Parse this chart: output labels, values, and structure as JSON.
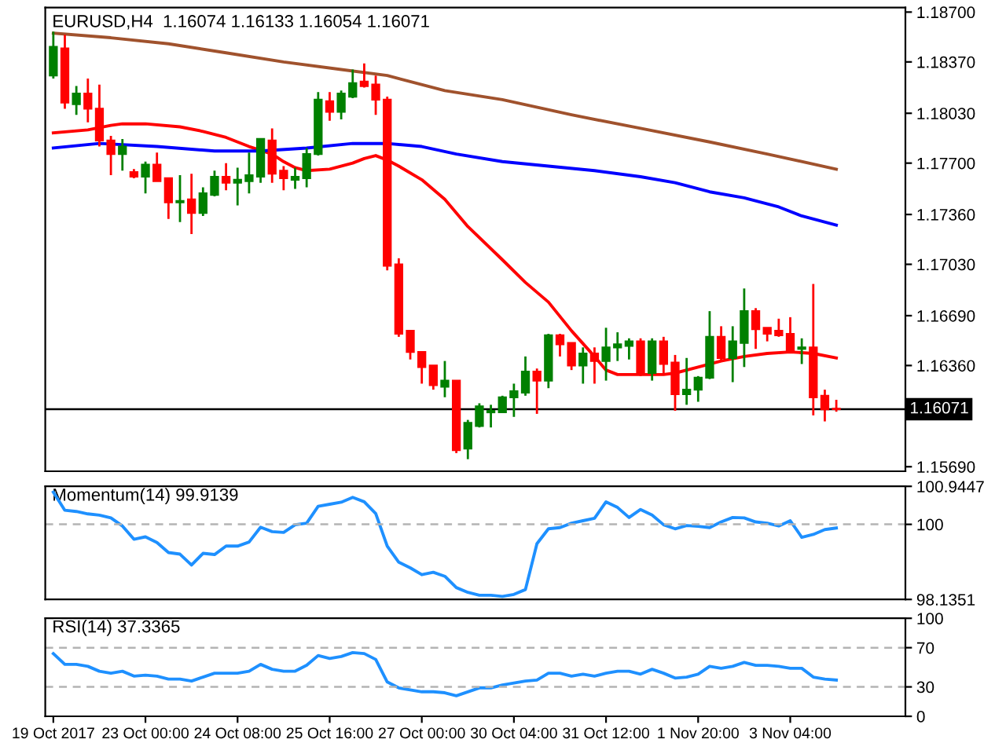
{
  "chart_data": [
    {
      "type": "candlestick",
      "title": "EURUSD,H4  1.16074 1.16133 1.16054 1.16071",
      "categories": [
        null,
        null,
        null,
        null,
        null,
        null,
        null,
        null,
        null,
        null,
        null,
        null,
        null,
        null,
        null,
        null,
        null,
        null,
        null,
        null,
        null,
        null,
        null,
        null,
        null,
        null,
        null,
        null,
        null,
        null,
        null,
        null,
        null,
        null,
        null,
        null,
        null,
        null,
        null,
        null,
        null,
        null,
        null,
        null,
        null,
        null,
        null,
        null,
        null,
        null,
        null,
        null,
        null,
        null,
        null,
        null,
        null,
        null,
        null,
        null,
        null,
        null,
        null,
        null,
        null,
        null,
        null,
        null,
        null
      ],
      "ohlc": [
        [
          1.1828,
          1.1857,
          1.1826,
          1.1847
        ],
        [
          1.1846,
          1.1855,
          1.1806,
          1.181
        ],
        [
          1.1809,
          1.1821,
          1.1802,
          1.1816
        ],
        [
          1.1816,
          1.1826,
          1.1797,
          1.1806
        ],
        [
          1.1806,
          1.1822,
          1.1781,
          1.1785
        ],
        [
          1.1785,
          1.1788,
          1.1762,
          1.1776
        ],
        [
          1.1776,
          1.1786,
          1.1765,
          1.1781
        ],
        [
          1.1764,
          1.1766,
          1.176,
          1.1761
        ],
        [
          1.1761,
          1.1771,
          1.175,
          1.1769
        ],
        [
          1.1769,
          1.1777,
          1.1758,
          1.1758
        ],
        [
          1.176,
          1.176,
          1.1733,
          1.1744
        ],
        [
          1.1744,
          1.1762,
          1.1731,
          1.1745
        ],
        [
          1.1746,
          1.1763,
          1.1723,
          1.1737
        ],
        [
          1.1737,
          1.1754,
          1.1735,
          1.175
        ],
        [
          1.1749,
          1.1765,
          1.1748,
          1.1761
        ],
        [
          1.1761,
          1.177,
          1.1752,
          1.1757
        ],
        [
          1.1757,
          1.1767,
          1.1742,
          1.1759
        ],
        [
          1.1758,
          1.1777,
          1.175,
          1.1762
        ],
        [
          1.1761,
          1.1786,
          1.1757,
          1.1786
        ],
        [
          1.1785,
          1.1793,
          1.1757,
          1.1763
        ],
        [
          1.1765,
          1.1768,
          1.1752,
          1.176
        ],
        [
          1.1759,
          1.1767,
          1.1753,
          1.1761
        ],
        [
          1.176,
          1.178,
          1.1754,
          1.1776
        ],
        [
          1.1776,
          1.1817,
          1.1775,
          1.1812
        ],
        [
          1.1811,
          1.1817,
          1.1798,
          1.1804
        ],
        [
          1.1804,
          1.1818,
          1.1799,
          1.1816
        ],
        [
          1.1814,
          1.1832,
          1.1813,
          1.1823
        ],
        [
          1.1824,
          1.1836,
          1.182,
          1.1821
        ],
        [
          1.1822,
          1.1828,
          1.1802,
          1.1812
        ],
        [
          1.1812,
          1.1814,
          1.1699,
          1.1702
        ],
        [
          1.1703,
          1.1707,
          1.1655,
          1.1657
        ],
        [
          1.1659,
          1.1659,
          1.164,
          1.1645
        ],
        [
          1.1645,
          1.1645,
          1.1624,
          1.1635
        ],
        [
          1.1636,
          1.1636,
          1.162,
          1.1623
        ],
        [
          1.1622,
          1.1639,
          1.1615,
          1.1626
        ],
        [
          1.1626,
          1.1626,
          1.1578,
          1.158
        ],
        [
          1.1581,
          1.16,
          1.1574,
          1.1598
        ],
        [
          1.1596,
          1.1611,
          1.1595,
          1.1609
        ],
        [
          1.1605,
          1.161,
          1.1595,
          1.1606
        ],
        [
          1.1605,
          1.1616,
          1.1605,
          1.1615
        ],
        [
          1.1615,
          1.1624,
          1.1602,
          1.1619
        ],
        [
          1.1618,
          1.1642,
          1.1616,
          1.1632
        ],
        [
          1.1632,
          1.1634,
          1.1604,
          1.1626
        ],
        [
          1.1626,
          1.1657,
          1.1621,
          1.1656
        ],
        [
          1.1656,
          1.1657,
          1.1642,
          1.165
        ],
        [
          1.1651,
          1.1651,
          1.1633,
          1.1636
        ],
        [
          1.1636,
          1.1648,
          1.1624,
          1.1644
        ],
        [
          1.1644,
          1.1648,
          1.1624,
          1.1639
        ],
        [
          1.1639,
          1.1661,
          1.1626,
          1.1648
        ],
        [
          1.1648,
          1.1658,
          1.1639,
          1.165
        ],
        [
          1.1649,
          1.1654,
          1.164,
          1.1652
        ],
        [
          1.1652,
          1.1654,
          1.1629,
          1.1631
        ],
        [
          1.1631,
          1.1654,
          1.1626,
          1.1652
        ],
        [
          1.1652,
          1.1655,
          1.1631,
          1.1637
        ],
        [
          1.1638,
          1.1643,
          1.1606,
          1.1617
        ],
        [
          1.1617,
          1.1641,
          1.161,
          1.162
        ],
        [
          1.162,
          1.1629,
          1.1612,
          1.1628
        ],
        [
          1.1628,
          1.1672,
          1.1627,
          1.1655
        ],
        [
          1.1655,
          1.1662,
          1.1639,
          1.1641
        ],
        [
          1.1641,
          1.1662,
          1.1625,
          1.1652
        ],
        [
          1.1651,
          1.1687,
          1.1635,
          1.1672
        ],
        [
          1.1672,
          1.1674,
          1.1647,
          1.166
        ],
        [
          1.1661,
          1.1661,
          1.1652,
          1.1657
        ],
        [
          1.1659,
          1.1667,
          1.1655,
          1.1656
        ],
        [
          1.1657,
          1.1668,
          1.1644,
          1.1645
        ],
        [
          1.1647,
          1.1654,
          1.1637,
          1.1648
        ],
        [
          1.1648,
          1.169,
          1.1603,
          1.1615
        ],
        [
          1.1616,
          1.162,
          1.1599,
          1.1607
        ],
        [
          1.16074,
          1.16133,
          1.16054,
          1.16071
        ]
      ],
      "colors": [
        "#008000",
        "#ff0000",
        "#008000",
        "#ff0000",
        "#ff0000",
        "#ff0000",
        "#008000",
        "#ff0000",
        "#008000",
        "#ff0000",
        "#ff0000",
        "#008000",
        "#ff0000",
        "#008000",
        "#008000",
        "#ff0000",
        "#008000",
        "#008000",
        "#008000",
        "#ff0000",
        "#ff0000",
        "#008000",
        "#008000",
        "#008000",
        "#ff0000",
        "#008000",
        "#008000",
        "#ff0000",
        "#ff0000",
        "#ff0000",
        "#ff0000",
        "#ff0000",
        "#ff0000",
        "#ff0000",
        "#008000",
        "#ff0000",
        "#008000",
        "#008000",
        "#008000",
        "#008000",
        "#008000",
        "#008000",
        "#ff0000",
        "#008000",
        "#ff0000",
        "#ff0000",
        "#008000",
        "#ff0000",
        "#008000",
        "#008000",
        "#008000",
        "#ff0000",
        "#008000",
        "#ff0000",
        "#ff0000",
        "#008000",
        "#008000",
        "#008000",
        "#ff0000",
        "#008000",
        "#008000",
        "#ff0000",
        "#ff0000",
        "#ff0000",
        "#ff0000",
        "#008000",
        "#ff0000",
        "#ff0000",
        "#ff0000"
      ],
      "series": [
        {
          "type": "line",
          "color": "#ff0000",
          "values": [
            1.179,
            null,
            null,
            1.1792,
            null,
            1.1795,
            1.1796,
            null,
            1.1796,
            null,
            null,
            1.1794,
            null,
            1.1791,
            null,
            1.1787,
            null,
            1.1781,
            null,
            1.1776,
            1.1771,
            1.1767,
            1.1765,
            null,
            1.1766,
            null,
            1.177,
            1.1773,
            1.1775,
            1.1772,
            1.1768,
            null,
            1.1759,
            null,
            1.1746,
            null,
            1.1728,
            null,
            null,
            1.1706,
            null,
            1.1691,
            null,
            1.1678,
            null,
            1.1659,
            null,
            1.1642,
            1.1633,
            1.163,
            null,
            1.163,
            null,
            1.163,
            1.1631,
            null,
            1.1635,
            null,
            1.1639,
            null,
            1.1642,
            null,
            1.1644,
            null,
            1.1645,
            null,
            1.1644,
            null,
            1.1641
          ]
        },
        {
          "type": "line",
          "color": "#0000ff",
          "values": [
            1.178,
            null,
            null,
            null,
            1.1783,
            null,
            null,
            null,
            null,
            1.1781,
            null,
            null,
            null,
            null,
            1.1778,
            null,
            null,
            null,
            1.1778,
            null,
            null,
            null,
            1.178,
            null,
            null,
            null,
            1.1783,
            null,
            null,
            1.1783,
            null,
            null,
            1.1781,
            null,
            null,
            1.1776,
            null,
            null,
            null,
            1.1771,
            null,
            null,
            null,
            1.1768,
            null,
            null,
            null,
            1.1765,
            null,
            null,
            null,
            1.1761,
            null,
            null,
            1.1757,
            null,
            null,
            1.1751,
            null,
            null,
            1.1747,
            null,
            null,
            1.1741,
            null,
            1.1735,
            null,
            null,
            1.1729
          ]
        },
        {
          "type": "line",
          "color": "#a0522d",
          "values": [
            1.1856,
            null,
            null,
            null,
            null,
            1.1853,
            null,
            null,
            null,
            null,
            1.1849,
            null,
            null,
            null,
            null,
            1.1843,
            null,
            null,
            null,
            null,
            1.1837,
            null,
            null,
            null,
            null,
            1.1832,
            null,
            null,
            null,
            1.1828,
            null,
            null,
            null,
            null,
            1.1818,
            null,
            null,
            null,
            null,
            1.1812,
            null,
            null,
            null,
            null,
            null,
            1.1802,
            null,
            null,
            null,
            null,
            null,
            1.1793,
            null,
            null,
            null,
            null,
            null,
            1.1784,
            null,
            null,
            null,
            null,
            1.1776,
            null,
            null,
            null,
            null,
            null,
            1.1766
          ]
        }
      ],
      "ylim": [
        1.1566,
        1.1873
      ],
      "yticks": [
        {
          "value": 1.187,
          "label": "1.18700"
        },
        {
          "value": 1.1837,
          "label": "1.18370"
        },
        {
          "value": 1.1803,
          "label": "1.18030"
        },
        {
          "value": 1.177,
          "label": "1.17700"
        },
        {
          "value": 1.1736,
          "label": "1.17360"
        },
        {
          "value": 1.1703,
          "label": "1.17030"
        },
        {
          "value": 1.1669,
          "label": "1.16690"
        },
        {
          "value": 1.1636,
          "label": "1.16360"
        },
        {
          "value": 1.1569,
          "label": "1.15690"
        }
      ],
      "ref_lines": [
        {
          "axis": "y",
          "value": 1.16071,
          "label": "1.16071",
          "color": "#000000",
          "line_style": "solid"
        }
      ],
      "tick_labels": "y",
      "grid": false,
      "legend": false
    },
    {
      "type": "line",
      "title": "Momentum(14) 99.9139",
      "categories": [
        null,
        null,
        null,
        null,
        null,
        null,
        null,
        null,
        null,
        null,
        null,
        null,
        null,
        null,
        null,
        null,
        null,
        null,
        null,
        null,
        null,
        null,
        null,
        null,
        null,
        null,
        null,
        null,
        null,
        null,
        null,
        null,
        null,
        null,
        null,
        null,
        null,
        null,
        null,
        null,
        null,
        null,
        null,
        null,
        null,
        null,
        null,
        null,
        null,
        null,
        null,
        null,
        null,
        null,
        null,
        null,
        null,
        null,
        null,
        null,
        null,
        null,
        null,
        null,
        null,
        null,
        null,
        null,
        null
      ],
      "series": [
        {
          "color": "#1e90ff",
          "values": [
            100.8,
            100.35,
            100.32,
            100.26,
            100.23,
            100.16,
            99.96,
            99.63,
            99.69,
            99.55,
            99.3,
            99.26,
            98.99,
            99.28,
            99.25,
            99.46,
            99.46,
            99.56,
            99.93,
            99.82,
            99.8,
            99.99,
            100.03,
            100.45,
            100.5,
            100.55,
            100.67,
            100.56,
            100.27,
            99.46,
            99.06,
            98.92,
            98.75,
            98.81,
            98.71,
            98.43,
            98.31,
            98.24,
            98.24,
            98.21,
            98.26,
            98.38,
            99.52,
            99.89,
            99.92,
            100.03,
            100.09,
            100.15,
            100.56,
            100.42,
            100.17,
            100.37,
            100.23,
            99.99,
            99.89,
            99.97,
            99.95,
            99.92,
            100.06,
            100.17,
            100.16,
            100.06,
            100.03,
            99.96,
            100.09,
            99.68,
            99.75,
            99.87,
            99.91
          ]
        }
      ],
      "ylim": [
        98.1351,
        100.9447
      ],
      "yticks": [
        {
          "value": 100.9447,
          "label": "100.9447"
        },
        100,
        {
          "value": 98.1351,
          "label": "98.1351"
        }
      ],
      "ref_lines": [
        {
          "axis": "y",
          "value": 100,
          "color": "#b4b4b4",
          "line_style": "dashed"
        }
      ],
      "tick_labels": "y",
      "grid": false,
      "legend": false,
      "marker": "none",
      "line_style": "solid"
    },
    {
      "type": "line",
      "title": "RSI(14) 37.3365",
      "categories": [
        "19 Oct 2017",
        null,
        null,
        null,
        null,
        null,
        null,
        null,
        "23 Oct 00:00",
        null,
        null,
        null,
        null,
        null,
        null,
        null,
        "24 Oct 08:00",
        null,
        null,
        null,
        null,
        null,
        null,
        null,
        "25 Oct 16:00",
        null,
        null,
        null,
        null,
        null,
        null,
        null,
        "27 Oct 00:00",
        null,
        null,
        null,
        null,
        null,
        null,
        null,
        "30 Oct 04:00",
        null,
        null,
        null,
        null,
        null,
        null,
        null,
        "31 Oct 12:00",
        null,
        null,
        null,
        null,
        null,
        null,
        null,
        "1 Nov 20:00",
        null,
        null,
        null,
        null,
        null,
        null,
        null,
        "3 Nov 04:00",
        null,
        null,
        null,
        null
      ],
      "series": [
        {
          "color": "#1e90ff",
          "values": [
            64,
            53,
            53,
            51,
            46,
            44,
            46,
            41,
            42,
            41,
            38,
            38,
            36,
            40,
            44,
            44,
            44,
            46,
            53,
            48,
            46,
            46,
            52,
            62,
            59,
            61,
            65,
            64,
            58,
            35,
            29,
            27,
            25,
            25,
            24,
            21,
            25,
            29,
            29,
            32,
            34,
            36,
            37,
            44,
            44,
            41,
            43,
            41,
            44,
            46,
            46,
            43,
            48,
            44,
            39,
            40,
            43,
            51,
            49,
            51,
            55,
            52,
            52,
            51,
            49,
            49,
            40,
            38,
            37
          ]
        }
      ],
      "ylim": [
        0,
        100
      ],
      "yticks": [
        0,
        30,
        70,
        100
      ],
      "ref_lines": [
        {
          "axis": "y",
          "value": 70,
          "color": "#b4b4b4",
          "line_style": "dashed"
        },
        {
          "axis": "y",
          "value": 30,
          "color": "#b4b4b4",
          "line_style": "dashed"
        }
      ],
      "grid": false,
      "legend": false,
      "marker": "none",
      "line_style": "solid"
    }
  ]
}
